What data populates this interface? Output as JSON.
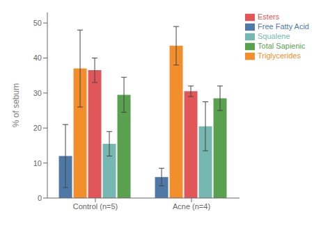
{
  "chart_data": {
    "type": "bar",
    "categories": [
      "Control (n=5)",
      "Acne (n=4)"
    ],
    "series": [
      {
        "name": "Free Fatty Acid",
        "color": "#4e79a7",
        "values": [
          12,
          6
        ],
        "errors": [
          9,
          2.5
        ]
      },
      {
        "name": "Triglycerides",
        "color": "#f28e2b",
        "values": [
          37,
          43.5
        ],
        "errors": [
          11,
          5.5
        ]
      },
      {
        "name": "Esters",
        "color": "#e15759",
        "values": [
          36.5,
          30.5
        ],
        "errors": [
          3.5,
          1.5
        ]
      },
      {
        "name": "Squalene",
        "color": "#76b7b2",
        "values": [
          15.5,
          20.5
        ],
        "errors": [
          3.5,
          7
        ]
      },
      {
        "name": "Total Sapienic",
        "color": "#59a14f",
        "values": [
          29.5,
          28.5
        ],
        "errors": [
          5,
          3.5
        ]
      }
    ],
    "ylabel": "% of sebum",
    "ylim": [
      0,
      53
    ],
    "yticks": [
      0,
      10,
      20,
      30,
      40,
      50
    ],
    "grid": false,
    "legend": "upper right"
  }
}
